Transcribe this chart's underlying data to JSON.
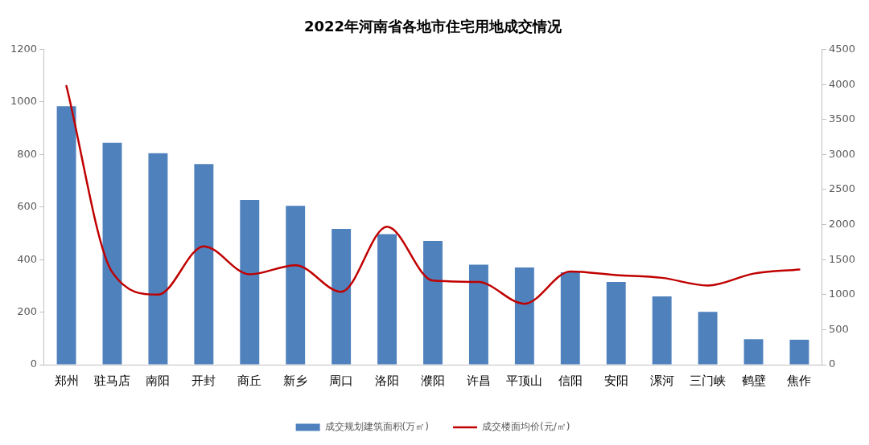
{
  "chart_data": {
    "type": "bar",
    "title": "2022年河南省各地市住宅用地成交情况",
    "categories": [
      "郑州",
      "驻马店",
      "南阳",
      "开封",
      "商丘",
      "新乡",
      "周口",
      "洛阳",
      "濮阳",
      "许昌",
      "平顶山",
      "信阳",
      "安阳",
      "漯河",
      "三门峡",
      "鹤壁",
      "焦作"
    ],
    "series": [
      {
        "name": "成交规划建筑面积(万㎡)",
        "color": "#4f81bd",
        "values": [
          984,
          845,
          805,
          764,
          627,
          605,
          517,
          497,
          471,
          381,
          370,
          352,
          315,
          260,
          201,
          97,
          95
        ]
      },
      {
        "name": "成交楼面均价(元/㎡)",
        "type": "line",
        "axis": "y2",
        "color": "#c00000",
        "values": [
          3980,
          1320,
          1000,
          1690,
          1290,
          1420,
          1040,
          1970,
          1200,
          1180,
          870,
          1330,
          1280,
          1240,
          1130,
          1300,
          1360
        ]
      }
    ],
    "ylim": [
      0,
      1200
    ],
    "yticks": [
      0,
      200,
      400,
      600,
      800,
      1000,
      1200
    ],
    "y2lim": [
      0,
      4500
    ],
    "y2ticks": [
      0,
      500,
      1000,
      1500,
      2000,
      2500,
      3000,
      3500,
      4000,
      4500
    ],
    "grid": false,
    "legend": "bottom",
    "marker": "none"
  }
}
